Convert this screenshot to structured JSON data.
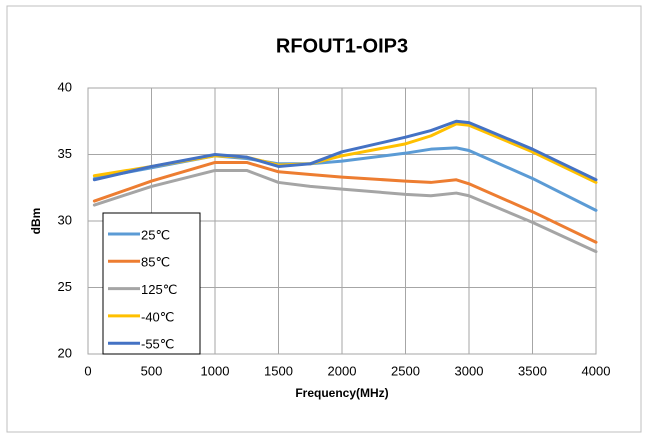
{
  "chart_data": {
    "type": "line",
    "title": "RFOUT1-OIP3",
    "x_label": "Frequency(MHz)",
    "y_label": "dBm",
    "x": [
      50,
      500,
      1000,
      1250,
      1500,
      1750,
      2000,
      2500,
      2700,
      2900,
      3000,
      3500,
      4000
    ],
    "series": [
      {
        "name": "25℃",
        "color": "#5b9bd5",
        "values": [
          33.2,
          34.0,
          34.9,
          34.7,
          34.3,
          34.3,
          34.5,
          35.1,
          35.4,
          35.5,
          35.3,
          33.2,
          30.8
        ]
      },
      {
        "name": "85℃",
        "color": "#ed7d31",
        "values": [
          31.5,
          33.0,
          34.4,
          34.4,
          33.7,
          33.5,
          33.3,
          33.0,
          32.9,
          33.1,
          32.8,
          30.7,
          28.4
        ]
      },
      {
        "name": "125℃",
        "color": "#a5a5a5",
        "values": [
          31.2,
          32.6,
          33.8,
          33.8,
          32.9,
          32.6,
          32.4,
          32.0,
          31.9,
          32.1,
          31.9,
          29.9,
          27.7
        ]
      },
      {
        "name": "-40℃",
        "color": "#ffc000",
        "values": [
          33.4,
          34.1,
          34.9,
          34.8,
          34.2,
          34.3,
          34.9,
          35.8,
          36.4,
          37.3,
          37.2,
          35.2,
          32.9
        ]
      },
      {
        "name": "-55℃",
        "color": "#4472c4",
        "values": [
          33.1,
          34.1,
          35.0,
          34.8,
          34.1,
          34.3,
          35.2,
          36.3,
          36.8,
          37.5,
          37.4,
          35.4,
          33.1
        ]
      }
    ],
    "xlim": [
      0,
      4000
    ],
    "xticks": [
      0,
      500,
      1000,
      1500,
      2000,
      2500,
      3000,
      3500,
      4000
    ],
    "ylim": [
      20,
      40
    ],
    "yticks": [
      20,
      25,
      30,
      35,
      40
    ],
    "grid": true,
    "legend": "lower left"
  }
}
